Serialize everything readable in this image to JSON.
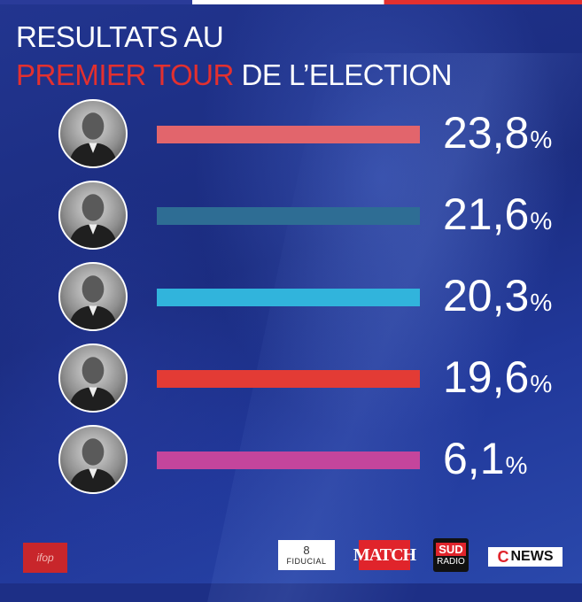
{
  "title": {
    "line1": "RESULTATS AU",
    "line2_highlight": "PREMIER TOUR",
    "line2_rest": " DE L’ELECTION"
  },
  "colors": {
    "accent_red": "#e3302f",
    "stripe": [
      "#2a3b99",
      "#ffffff",
      "#e3302f"
    ]
  },
  "chart_data": {
    "type": "bar",
    "orientation": "horizontal",
    "values": [
      23.8,
      21.6,
      20.3,
      19.6,
      6.1
    ],
    "labels": [
      "23,8",
      "21,6",
      "20,3",
      "19,6",
      "6,1"
    ],
    "unit": "%",
    "colors": [
      "#e2656c",
      "#2e6d94",
      "#31b4dc",
      "#e33b35",
      "#c4459c"
    ],
    "bar_length_scale": "equal (all bars same length)",
    "portraits": [
      "portrait-icon",
      "portrait-icon",
      "portrait-icon",
      "portrait-icon",
      "portrait-icon"
    ]
  },
  "footer": {
    "ifop": "ifop",
    "fiducial_mark": "8",
    "fiducial": "FIDUCIAL",
    "match": "MATCH",
    "sud": "SUD",
    "radio": "RADIO",
    "cnews_c": "C",
    "cnews_news": "NEWS"
  }
}
